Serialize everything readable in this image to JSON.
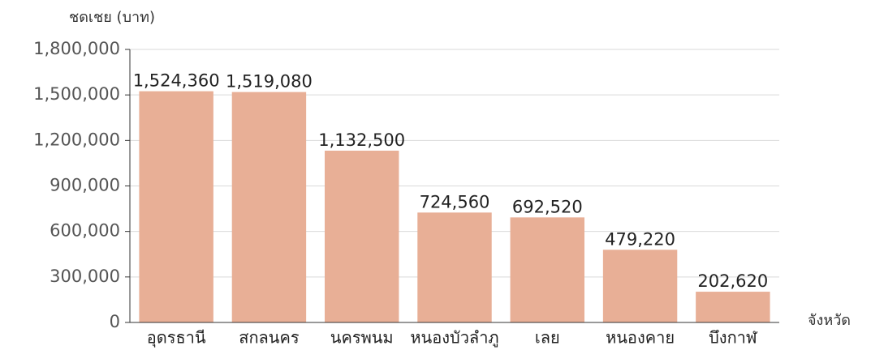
{
  "chart_data": {
    "type": "bar",
    "y_label": "ชดเชย (บาท)",
    "x_label": "จังหวัด",
    "categories": [
      "อุดรธานี",
      "สกลนคร",
      "นครพนม",
      "หนองบัวลำภู",
      "เลย",
      "หนองคาย",
      "บึงกาฬ"
    ],
    "values": [
      1524360,
      1519080,
      1132500,
      724560,
      692520,
      479220,
      202620
    ],
    "value_labels": [
      "1,524,360",
      "1,519,080",
      "1,132,500",
      "724,560",
      "692,520",
      "479,220",
      "202,620"
    ],
    "color": "#e8af96",
    "ylim": [
      0,
      1800000
    ],
    "yticks": [
      0,
      {
        "value": 300000,
        "label": "300,000"
      },
      {
        "value": 600000,
        "label": "600,000"
      },
      {
        "value": 900000,
        "label": "900,000"
      },
      {
        "value": 1200000,
        "label": "1,200,000"
      },
      {
        "value": 1500000,
        "label": "1,500,000"
      },
      {
        "value": 1800000,
        "label": "1,800,000"
      }
    ],
    "grid": true
  }
}
